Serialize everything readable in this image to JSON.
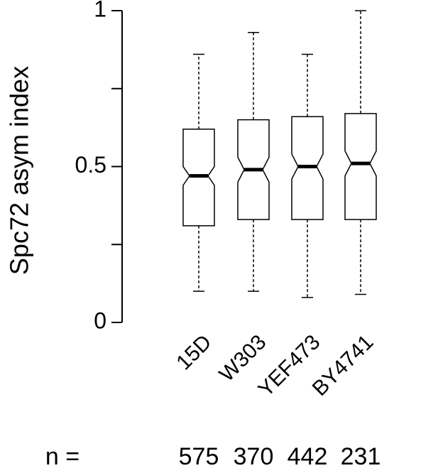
{
  "chart_data": {
    "type": "boxplot",
    "ylabel": "Spc72 asym index",
    "categories": [
      "15D",
      "W303",
      "YEF473",
      "BY4741"
    ],
    "boxes": [
      {
        "min": 0.1,
        "q1": 0.31,
        "notch_low": 0.44,
        "median": 0.47,
        "notch_high": 0.5,
        "q3": 0.62,
        "max": 0.86
      },
      {
        "min": 0.1,
        "q1": 0.33,
        "notch_low": 0.45,
        "median": 0.49,
        "notch_high": 0.53,
        "q3": 0.65,
        "max": 0.93
      },
      {
        "min": 0.08,
        "q1": 0.33,
        "notch_low": 0.46,
        "median": 0.5,
        "notch_high": 0.54,
        "q3": 0.66,
        "max": 0.86
      },
      {
        "min": 0.09,
        "q1": 0.33,
        "notch_low": 0.47,
        "median": 0.51,
        "notch_high": 0.55,
        "q3": 0.67,
        "max": 1.0
      }
    ],
    "n_label": "n =",
    "counts": [
      575,
      370,
      442,
      231
    ],
    "ylim": [
      0,
      1
    ],
    "yticks": [
      0,
      0.5,
      1
    ],
    "yminor_ticks": [
      0.25,
      0.75
    ]
  }
}
